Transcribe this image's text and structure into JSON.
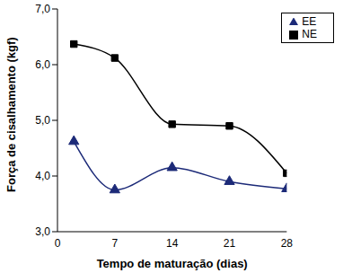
{
  "chart_data": {
    "type": "line",
    "x_label": "Tempo de maturação (dias)",
    "y_label": "Força de cisalhamento (kgf)",
    "x": [
      2,
      7,
      14,
      21,
      28
    ],
    "series": [
      {
        "name": "EE",
        "color": "#1c2a78",
        "marker": "triangle",
        "line_style": "solid",
        "values": [
          4.62,
          3.75,
          4.15,
          3.9,
          3.77
        ]
      },
      {
        "name": "NE",
        "color": "#000000",
        "marker": "square",
        "line_style": "solid",
        "values": [
          6.37,
          6.12,
          4.93,
          4.9,
          4.05
        ]
      }
    ],
    "xlim": [
      0,
      28
    ],
    "xticks": [
      0,
      7,
      14,
      21,
      28
    ],
    "ylim": [
      3,
      7
    ],
    "yticks": [
      {
        "value": 3,
        "label": "3,0"
      },
      {
        "value": 4,
        "label": "4,0"
      },
      {
        "value": 5,
        "label": "5,0"
      },
      {
        "value": 6,
        "label": "6,0"
      },
      {
        "value": 7,
        "label": "7,0"
      }
    ],
    "grid": false,
    "legend": "upper right"
  }
}
